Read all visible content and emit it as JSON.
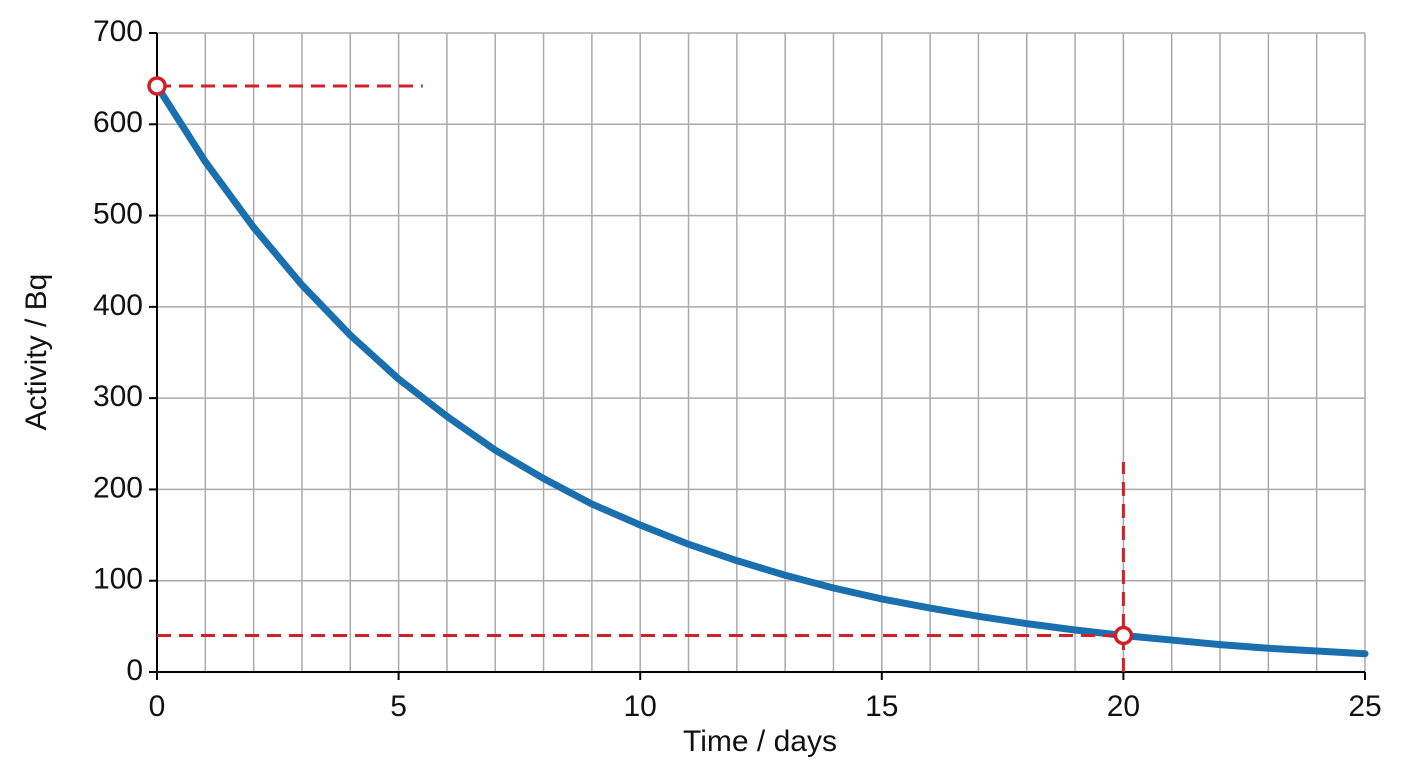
{
  "chart_data": {
    "type": "line",
    "x_label": "Time / days",
    "y_label": "Activity / Bq",
    "x": [
      0,
      1,
      2,
      3,
      4,
      5,
      6,
      7,
      8,
      9,
      10,
      11,
      12,
      13,
      14,
      15,
      16,
      17,
      18,
      19,
      20,
      21,
      22,
      23,
      24,
      25
    ],
    "values": [
      642,
      559,
      487,
      424,
      369,
      321,
      280,
      243,
      212,
      184,
      161,
      140,
      122,
      106,
      92,
      80,
      70,
      61,
      53,
      46,
      40,
      35,
      30,
      26,
      23,
      20
    ],
    "color": "#1a6faf",
    "xlim": [
      0,
      25
    ],
    "ylim": [
      0,
      700
    ],
    "xticks": [
      0,
      5,
      10,
      15,
      20,
      25
    ],
    "yticks": [
      0,
      100,
      200,
      300,
      400,
      500,
      600,
      700
    ],
    "xgrid": [
      0,
      1,
      2,
      3,
      4,
      5,
      6,
      7,
      8,
      9,
      10,
      11,
      12,
      13,
      14,
      15,
      16,
      17,
      18,
      19,
      20,
      21,
      22,
      23,
      24,
      25
    ],
    "grid": true,
    "annotation_color": "#d0202a",
    "markers": [
      {
        "x": 0,
        "y": 642
      },
      {
        "x": 20,
        "y": 40
      }
    ],
    "guide_lines": [
      {
        "x": [
          0,
          5.5
        ],
        "y": [
          642,
          642
        ]
      },
      {
        "x": [
          0,
          20
        ],
        "y": [
          40,
          40
        ]
      },
      {
        "x": [
          20,
          20
        ],
        "y": [
          0,
          230
        ]
      }
    ]
  }
}
